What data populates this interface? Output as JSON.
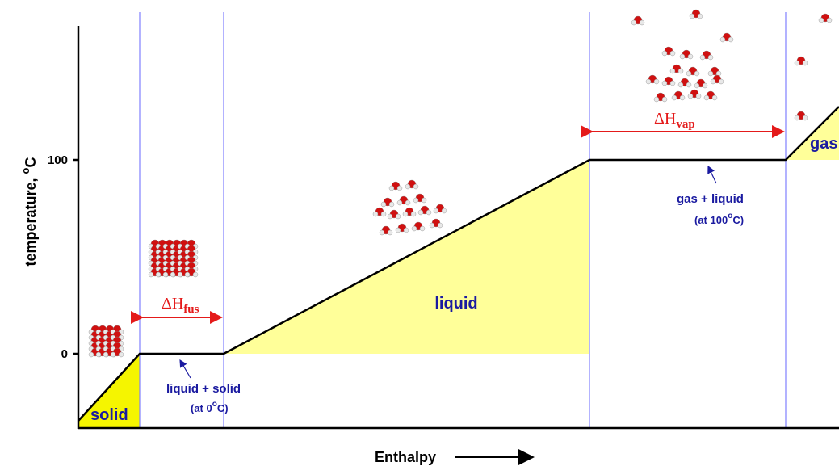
{
  "axis": {
    "y_label": {
      "text": "temperature, ",
      "sup": "o",
      "unit": "C"
    },
    "yticks": [
      "0",
      "100"
    ],
    "x_label": "Enthalpy"
  },
  "regions": {
    "solid": "solid",
    "liquid": "liquid",
    "gas": "gas"
  },
  "enthalpy_changes": {
    "fusion": {
      "main": "ΔH",
      "sub": "fus"
    },
    "vaporization": {
      "main": "ΔH",
      "sub": "vap"
    }
  },
  "annotations": [
    {
      "text": "liquid + solid",
      "note": {
        "pre": "(at 0",
        "sup": "o",
        "post": "C)"
      }
    },
    {
      "text": "gas + liquid",
      "note": {
        "pre": "(at 100",
        "sup": "o",
        "post": "C)"
      }
    }
  ]
}
